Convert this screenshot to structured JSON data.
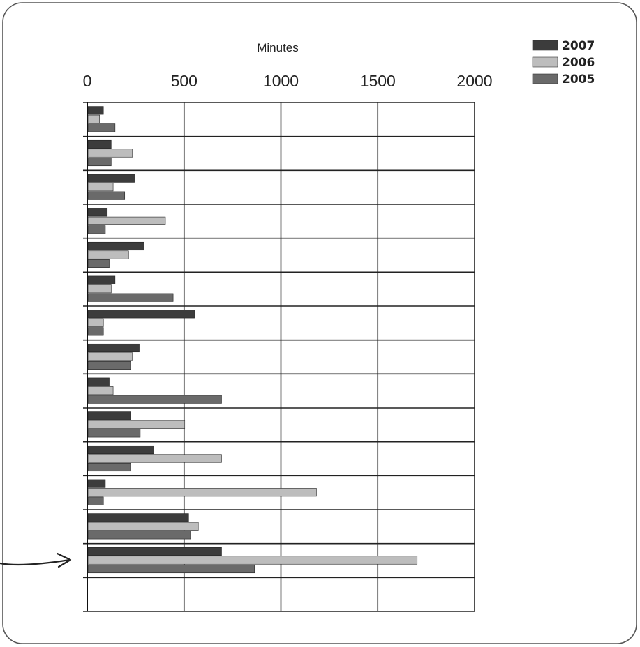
{
  "chart_data": {
    "type": "bar",
    "orientation": "horizontal",
    "title": "",
    "xlabel": "Minutes",
    "ylabel": "",
    "xlim": [
      0,
      2000
    ],
    "xticks": [
      0,
      500,
      1000,
      1500,
      2000
    ],
    "x_axis_position": "top",
    "grid": true,
    "legend_position": "top-right",
    "category_count": 15,
    "series": [
      {
        "name": "2007",
        "color": "#3c3c3c",
        "values": [
          80,
          120,
          240,
          100,
          290,
          140,
          550,
          265,
          110,
          220,
          340,
          90,
          520,
          690,
          null
        ]
      },
      {
        "name": "2006",
        "color": "#bdbdbd",
        "values": [
          60,
          230,
          130,
          400,
          210,
          120,
          80,
          230,
          130,
          500,
          690,
          1180,
          570,
          1700,
          null
        ]
      },
      {
        "name": "2005",
        "color": "#6a6a6a",
        "values": [
          140,
          120,
          190,
          90,
          110,
          440,
          80,
          220,
          690,
          270,
          220,
          80,
          530,
          860,
          null
        ]
      }
    ],
    "annotations": [
      {
        "type": "arrow",
        "points_to_category_index": 13
      }
    ]
  }
}
